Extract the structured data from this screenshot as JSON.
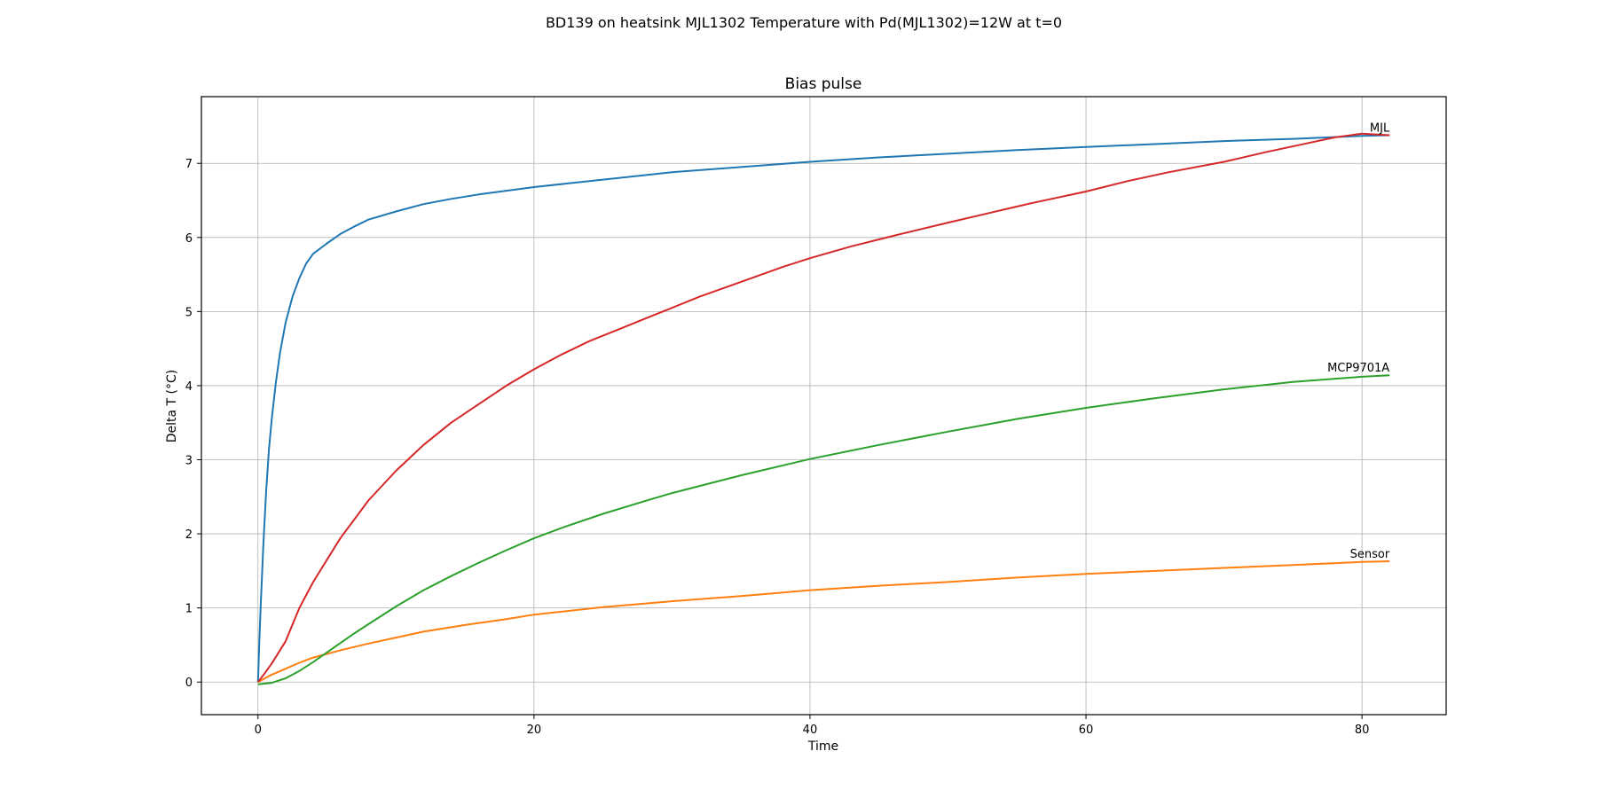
{
  "figure_title": "BD139 on heatsink MJL1302 Temperature with Pd(MJL1302)=12W at t=0",
  "chart_data": {
    "type": "line",
    "title": "Bias pulse",
    "xlabel": "Time",
    "ylabel": "Delta T (°C)",
    "xlim": [
      -4.1,
      86.1
    ],
    "ylim": [
      -0.44,
      7.9
    ],
    "xticks": [
      0,
      20,
      40,
      60,
      80
    ],
    "yticks": [
      0,
      1,
      2,
      3,
      4,
      5,
      6,
      7
    ],
    "grid": true,
    "series": [
      {
        "name": "MJL",
        "color": "#1f77b4",
        "label_visible": true,
        "points": [
          [
            0,
            0
          ],
          [
            0.1,
            0.55
          ],
          [
            0.2,
            1.05
          ],
          [
            0.4,
            1.9
          ],
          [
            0.6,
            2.6
          ],
          [
            0.8,
            3.15
          ],
          [
            1,
            3.55
          ],
          [
            1.3,
            4.05
          ],
          [
            1.6,
            4.45
          ],
          [
            2,
            4.85
          ],
          [
            2.5,
            5.2
          ],
          [
            3,
            5.45
          ],
          [
            3.5,
            5.65
          ],
          [
            4,
            5.78
          ],
          [
            5,
            5.92
          ],
          [
            6,
            6.05
          ],
          [
            7,
            6.15
          ],
          [
            8,
            6.24
          ],
          [
            10,
            6.35
          ],
          [
            12,
            6.45
          ],
          [
            14,
            6.52
          ],
          [
            16,
            6.58
          ],
          [
            18,
            6.63
          ],
          [
            20,
            6.68
          ],
          [
            25,
            6.78
          ],
          [
            30,
            6.88
          ],
          [
            35,
            6.95
          ],
          [
            40,
            7.02
          ],
          [
            45,
            7.08
          ],
          [
            50,
            7.13
          ],
          [
            55,
            7.18
          ],
          [
            60,
            7.22
          ],
          [
            65,
            7.26
          ],
          [
            70,
            7.3
          ],
          [
            75,
            7.33
          ],
          [
            80,
            7.37
          ],
          [
            82,
            7.38
          ]
        ]
      },
      {
        "name": "Sensor",
        "color": "#ff7f0e",
        "label_visible": true,
        "points": [
          [
            0,
            0
          ],
          [
            1,
            0.1
          ],
          [
            2,
            0.18
          ],
          [
            3,
            0.26
          ],
          [
            4,
            0.33
          ],
          [
            5,
            0.38
          ],
          [
            6,
            0.43
          ],
          [
            8,
            0.52
          ],
          [
            10,
            0.6
          ],
          [
            12,
            0.68
          ],
          [
            15,
            0.77
          ],
          [
            18,
            0.85
          ],
          [
            20,
            0.91
          ],
          [
            25,
            1.01
          ],
          [
            30,
            1.09
          ],
          [
            35,
            1.16
          ],
          [
            40,
            1.24
          ],
          [
            45,
            1.3
          ],
          [
            50,
            1.35
          ],
          [
            55,
            1.41
          ],
          [
            60,
            1.46
          ],
          [
            65,
            1.5
          ],
          [
            70,
            1.54
          ],
          [
            75,
            1.58
          ],
          [
            80,
            1.62
          ],
          [
            82,
            1.63
          ]
        ]
      },
      {
        "name": "MCP9701A",
        "color": "#2ca02c",
        "label_visible": true,
        "points": [
          [
            0,
            -0.03
          ],
          [
            1,
            -0.01
          ],
          [
            2,
            0.05
          ],
          [
            3,
            0.15
          ],
          [
            4,
            0.27
          ],
          [
            5,
            0.4
          ],
          [
            6,
            0.53
          ],
          [
            7,
            0.66
          ],
          [
            8,
            0.78
          ],
          [
            10,
            1.02
          ],
          [
            12,
            1.24
          ],
          [
            14,
            1.43
          ],
          [
            16,
            1.61
          ],
          [
            18,
            1.78
          ],
          [
            20,
            1.94
          ],
          [
            22,
            2.08
          ],
          [
            25,
            2.27
          ],
          [
            28,
            2.44
          ],
          [
            30,
            2.55
          ],
          [
            35,
            2.79
          ],
          [
            40,
            3.01
          ],
          [
            45,
            3.2
          ],
          [
            50,
            3.38
          ],
          [
            55,
            3.55
          ],
          [
            60,
            3.7
          ],
          [
            65,
            3.83
          ],
          [
            70,
            3.95
          ],
          [
            75,
            4.05
          ],
          [
            80,
            4.12
          ],
          [
            82,
            4.14
          ]
        ]
      },
      {
        "name": "",
        "color": "#d62728",
        "label_visible": false,
        "points": [
          [
            0,
            0
          ],
          [
            0.5,
            0.12
          ],
          [
            1,
            0.25
          ],
          [
            2,
            0.55
          ],
          [
            3,
            1.0
          ],
          [
            4,
            1.35
          ],
          [
            5,
            1.65
          ],
          [
            6,
            1.95
          ],
          [
            7,
            2.2
          ],
          [
            8,
            2.45
          ],
          [
            10,
            2.85
          ],
          [
            12,
            3.2
          ],
          [
            14,
            3.5
          ],
          [
            16,
            3.75
          ],
          [
            18,
            4.0
          ],
          [
            20,
            4.22
          ],
          [
            22,
            4.42
          ],
          [
            24,
            4.6
          ],
          [
            26,
            4.75
          ],
          [
            28,
            4.9
          ],
          [
            30,
            5.05
          ],
          [
            32,
            5.2
          ],
          [
            35,
            5.4
          ],
          [
            38,
            5.6
          ],
          [
            40,
            5.72
          ],
          [
            43,
            5.88
          ],
          [
            46,
            6.02
          ],
          [
            50,
            6.2
          ],
          [
            53,
            6.33
          ],
          [
            56,
            6.46
          ],
          [
            60,
            6.62
          ],
          [
            63,
            6.76
          ],
          [
            66,
            6.88
          ],
          [
            70,
            7.02
          ],
          [
            73,
            7.15
          ],
          [
            76,
            7.27
          ],
          [
            78,
            7.35
          ],
          [
            80,
            7.4
          ],
          [
            82,
            7.38
          ]
        ]
      }
    ]
  }
}
